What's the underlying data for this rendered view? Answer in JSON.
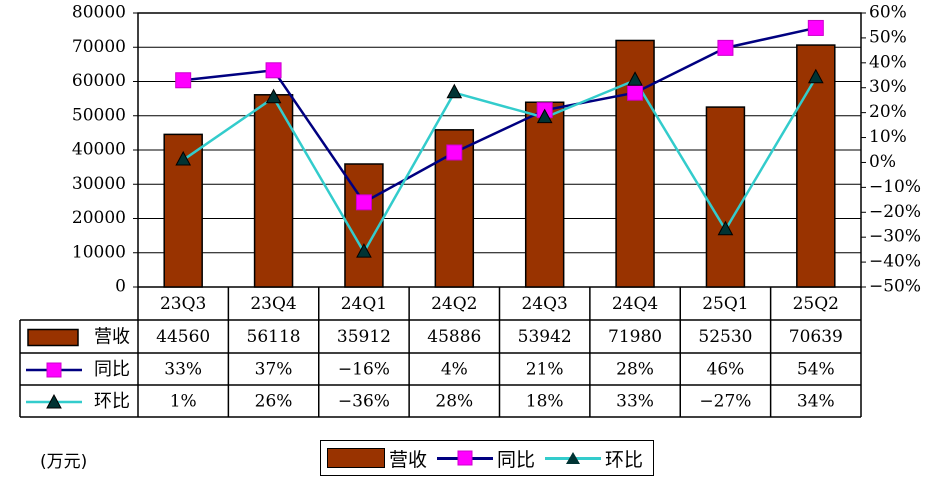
{
  "chart_data": {
    "type": "bar",
    "categories": [
      "23Q3",
      "23Q4",
      "24Q1",
      "24Q2",
      "24Q3",
      "24Q4",
      "25Q1",
      "25Q2"
    ],
    "series": [
      {
        "name": "营收",
        "type": "bar",
        "axis": "left",
        "values": [
          44560,
          56118,
          35912,
          45886,
          53942,
          71980,
          52530,
          70639
        ],
        "labels": [
          "44560",
          "56118",
          "35912",
          "45886",
          "53942",
          "71980",
          "52530",
          "70639"
        ],
        "color": "#993300"
      },
      {
        "name": "同比",
        "type": "line",
        "axis": "right",
        "values": [
          33,
          37,
          -16,
          4,
          21,
          28,
          46,
          54
        ],
        "labels": [
          "33%",
          "37%",
          "-16%",
          "4%",
          "21%",
          "28%",
          "46%",
          "54%"
        ],
        "color": "#000080",
        "marker_color": "#ff00ff",
        "marker": "square"
      },
      {
        "name": "环比",
        "type": "line",
        "axis": "right",
        "values": [
          1,
          26,
          -36,
          28,
          18,
          33,
          -27,
          34
        ],
        "labels": [
          "1%",
          "26%",
          "-36%",
          "28%",
          "18%",
          "33%",
          "-27%",
          "34%"
        ],
        "color": "#33cccc",
        "marker_color": "#003333",
        "marker": "triangle"
      }
    ],
    "y_left": {
      "min": 0,
      "max": 80000,
      "ticks": [
        0,
        10000,
        20000,
        30000,
        40000,
        50000,
        60000,
        70000,
        80000
      ],
      "tick_labels": [
        "0",
        "10000",
        "20000",
        "30000",
        "40000",
        "50000",
        "60000",
        "70000",
        "80000"
      ]
    },
    "y_right": {
      "min": -50,
      "max": 60,
      "ticks": [
        60,
        50,
        40,
        30,
        20,
        10,
        0,
        -10,
        -20,
        -30,
        -40,
        -50
      ],
      "tick_labels": [
        "60%",
        "50%",
        "40%",
        "30%",
        "20%",
        "10%",
        "0%",
        "-10%",
        "-20%",
        "-30%",
        "-40%",
        "-50%"
      ]
    },
    "grid": true,
    "data_table": true,
    "legend_position": "bottom"
  },
  "unit_label": "(万元)",
  "legend": {
    "bar_label": "营收",
    "yoy_label": "同比",
    "qoq_label": "环比"
  }
}
